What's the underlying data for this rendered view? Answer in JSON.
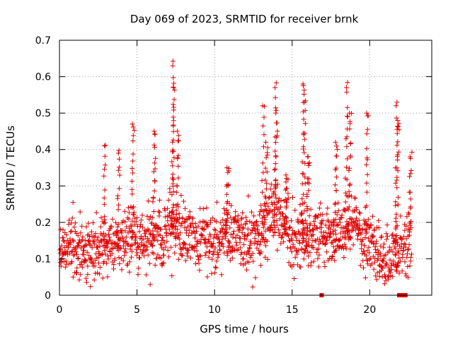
{
  "chart_data": {
    "type": "scatter",
    "title": "Day 069 of 2023, SRMTID for receiver brnk",
    "xlabel": "GPS time / hours",
    "ylabel": "SRMTID / TECUs",
    "xlim": [
      0,
      24
    ],
    "ylim": [
      0,
      0.7
    ],
    "x_ticks": [
      0,
      5,
      10,
      15,
      20
    ],
    "y_ticks": [
      0,
      0.1,
      0.2,
      0.3,
      0.4,
      0.5,
      0.6,
      0.7
    ],
    "x_tick_labels": [
      "0",
      "5",
      "10",
      "15",
      "20"
    ],
    "y_tick_labels": [
      "0",
      "0.1",
      "0.2",
      "0.3",
      "0.4",
      "0.5",
      "0.6",
      "0.7"
    ],
    "grid": true,
    "marker": "plus",
    "color": "#e00000",
    "baseline": {
      "description": "estimated typical level by hour",
      "hours": [
        0,
        1,
        2,
        3,
        4,
        5,
        6,
        7,
        8,
        9,
        10,
        11,
        12,
        13,
        14,
        15,
        16,
        17,
        18,
        19,
        20,
        21,
        22,
        23
      ],
      "median": [
        0.13,
        0.14,
        0.13,
        0.14,
        0.15,
        0.15,
        0.16,
        0.18,
        0.17,
        0.16,
        0.14,
        0.16,
        0.15,
        0.17,
        0.22,
        0.16,
        0.15,
        0.17,
        0.16,
        0.2,
        0.13,
        0.09,
        0.12,
        0.18
      ]
    },
    "excursions": [
      {
        "x": 2.9,
        "y": 0.41
      },
      {
        "x": 3.8,
        "y": 0.39
      },
      {
        "x": 4.7,
        "y": 0.47
      },
      {
        "x": 6.1,
        "y": 0.45
      },
      {
        "x": 7.3,
        "y": 0.63
      },
      {
        "x": 7.35,
        "y": 0.57
      },
      {
        "x": 7.6,
        "y": 0.45
      },
      {
        "x": 10.8,
        "y": 0.35
      },
      {
        "x": 13.1,
        "y": 0.52
      },
      {
        "x": 13.3,
        "y": 0.42
      },
      {
        "x": 13.9,
        "y": 0.57
      },
      {
        "x": 13.95,
        "y": 0.5
      },
      {
        "x": 14.6,
        "y": 0.33
      },
      {
        "x": 15.7,
        "y": 0.58
      },
      {
        "x": 15.8,
        "y": 0.53
      },
      {
        "x": 16.0,
        "y": 0.38
      },
      {
        "x": 17.8,
        "y": 0.42
      },
      {
        "x": 18.5,
        "y": 0.57
      },
      {
        "x": 18.7,
        "y": 0.5
      },
      {
        "x": 19.8,
        "y": 0.5
      },
      {
        "x": 21.7,
        "y": 0.52
      },
      {
        "x": 21.8,
        "y": 0.48
      },
      {
        "x": 22.6,
        "y": 0.38
      }
    ],
    "zero_markers": [
      16.9,
      21.9,
      22.1,
      22.3
    ]
  }
}
